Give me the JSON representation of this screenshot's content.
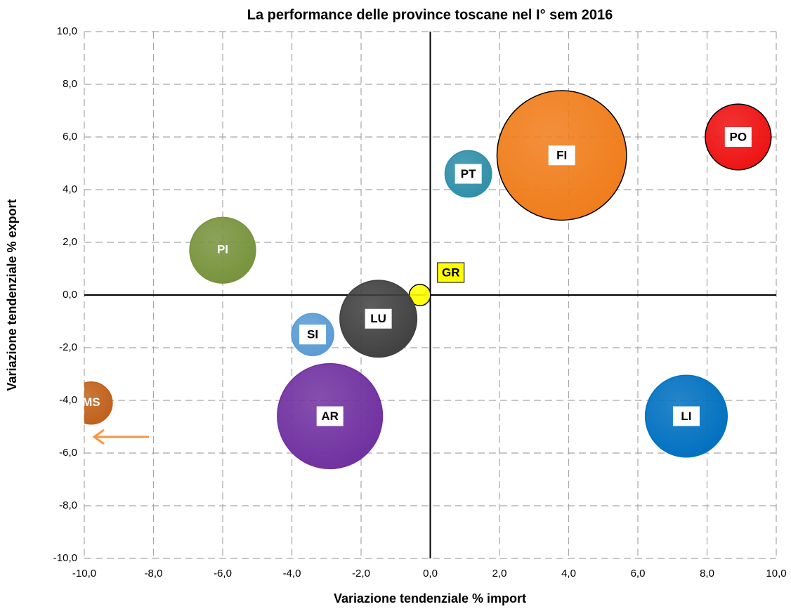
{
  "chart_data": {
    "type": "bubble",
    "title": "La performance delle province toscane nel I° sem 2016",
    "x_label": "Variazione tendenziale % import",
    "y_label": "Variazione tendenziale % export",
    "xlim": [
      -10,
      10
    ],
    "ylim": [
      -10,
      10
    ],
    "xticks": [
      {
        "value": -10,
        "label": "-10,0"
      },
      {
        "value": -8,
        "label": "-8,0"
      },
      {
        "value": -6,
        "label": "-6,0"
      },
      {
        "value": -4,
        "label": "-4,0"
      },
      {
        "value": -2,
        "label": "-2,0"
      },
      {
        "value": 0,
        "label": "0,0"
      },
      {
        "value": 2,
        "label": "2,0"
      },
      {
        "value": 4,
        "label": "4,0"
      },
      {
        "value": 6,
        "label": "6,0"
      },
      {
        "value": 8,
        "label": "8,0"
      },
      {
        "value": 10,
        "label": "10,0"
      }
    ],
    "yticks": [
      {
        "value": -10,
        "label": "-10,0"
      },
      {
        "value": -8,
        "label": "-8,0"
      },
      {
        "value": -6,
        "label": "-6,0"
      },
      {
        "value": -4,
        "label": "-4,0"
      },
      {
        "value": -2,
        "label": "-2,0"
      },
      {
        "value": 0,
        "label": "0,0"
      },
      {
        "value": 2,
        "label": "2,0"
      },
      {
        "value": 4,
        "label": "4,0"
      },
      {
        "value": 6,
        "label": "6,0"
      },
      {
        "value": 8,
        "label": "8,0"
      },
      {
        "value": 10,
        "label": "10,0"
      }
    ],
    "grid": true,
    "series": [
      {
        "name": "FI",
        "color": "#f07c1a",
        "x": 3.8,
        "y": 5.3,
        "size": 85
      },
      {
        "name": "PO",
        "color": "#ee1111",
        "x": 8.9,
        "y": 6.0,
        "size": 22
      },
      {
        "name": "PT",
        "color": "#2f8fa8",
        "x": 1.1,
        "y": 4.6,
        "size": 11
      },
      {
        "name": "PI",
        "color": "#77933c",
        "x": -6.0,
        "y": 1.7,
        "size": 22
      },
      {
        "name": "GR",
        "color": "#ffff00",
        "x": -0.3,
        "y": 0.0,
        "size": 2.3
      },
      {
        "name": "LU",
        "color": "#404040",
        "x": -1.5,
        "y": -0.9,
        "size": 30
      },
      {
        "name": "SI",
        "color": "#5b9bd5",
        "x": -3.4,
        "y": -1.5,
        "size": 9
      },
      {
        "name": "AR",
        "color": "#7030a0",
        "x": -2.9,
        "y": -4.6,
        "size": 56
      },
      {
        "name": "LI",
        "color": "#0070c0",
        "x": 7.4,
        "y": -4.6,
        "size": 34
      },
      {
        "name": "MS",
        "color": "#c0601a",
        "x": -9.8,
        "y": -4.1,
        "size": 9
      }
    ]
  }
}
